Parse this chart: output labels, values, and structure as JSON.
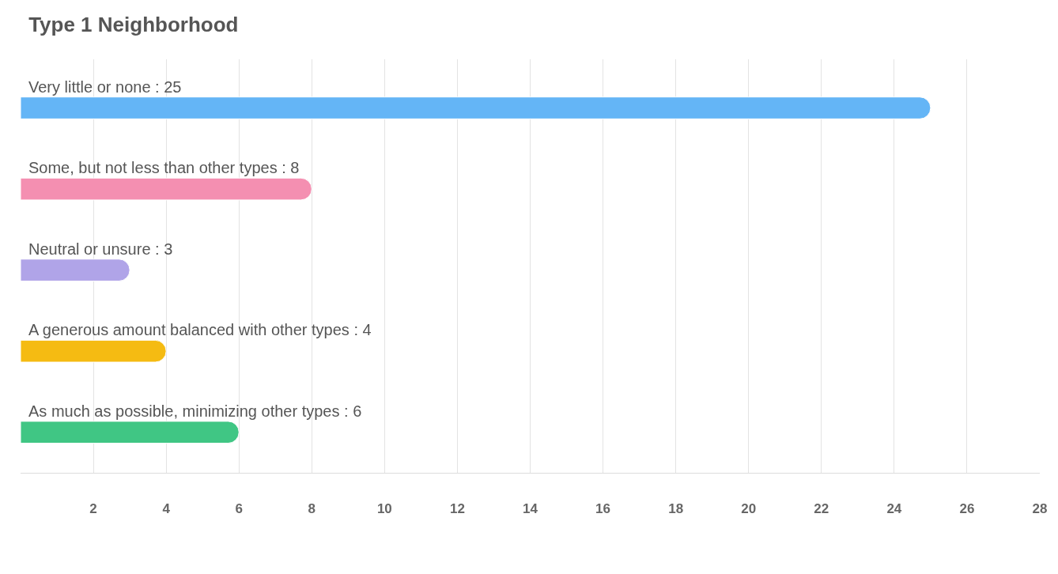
{
  "chart_data": {
    "type": "bar",
    "orientation": "horizontal",
    "title": "Type 1 Neighborhood",
    "categories": [
      "Very little or none : 25",
      "Some, but not less than other types : 8",
      "Neutral or unsure : 3",
      "A generous amount balanced with other types : 4",
      "As much as possible, minimizing other types : 6"
    ],
    "values": [
      25,
      8,
      3,
      4,
      6
    ],
    "colors": [
      "#64b5f6",
      "#f48fb1",
      "#b0a4e8",
      "#f5bb12",
      "#40c684"
    ],
    "xlim": [
      0,
      28
    ],
    "xticks": [
      2,
      4,
      6,
      8,
      10,
      12,
      14,
      16,
      18,
      20,
      22,
      24,
      26,
      28
    ],
    "grid": "x"
  }
}
